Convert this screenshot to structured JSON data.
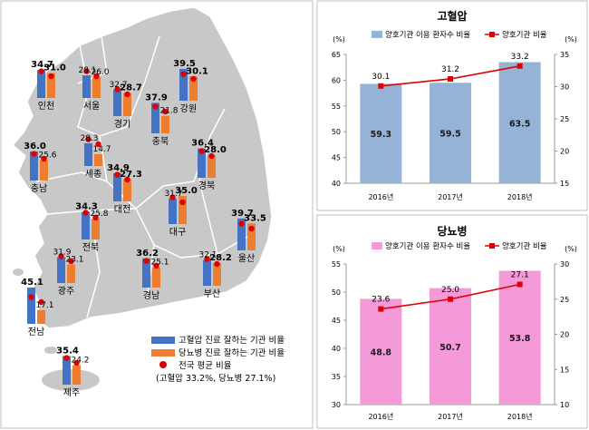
{
  "map": {
    "legend": {
      "hypertension_label": "고혈압 진료 잘하는 기관 비율",
      "diabetes_label": "당뇨병 진료 잘하는 기관 비율",
      "average_label": "전국 평균 비율",
      "average_note": "(고혈압 33.2%, 당뇨병 27.1%)"
    },
    "colors": {
      "hypertension": "#4472c4",
      "diabetes": "#ed7d31",
      "average_dot": "#e00000",
      "land": "#c8c8c8",
      "border": "#ffffff"
    },
    "national_average": {
      "hypertension": 33.2,
      "diabetes": 27.1
    },
    "regions": [
      {
        "name": "인천",
        "hypertension": 34.7,
        "diabetes": 31.0,
        "bold_h": true,
        "bold_d": true
      },
      {
        "name": "서울",
        "hypertension": 28.1,
        "diabetes": 26.0,
        "bold_h": false,
        "bold_d": false
      },
      {
        "name": "경기",
        "hypertension": 32.7,
        "diabetes": 28.7,
        "bold_h": false,
        "bold_d": true
      },
      {
        "name": "강원",
        "hypertension": 39.5,
        "diabetes": 30.1,
        "bold_h": true,
        "bold_d": true
      },
      {
        "name": "충북",
        "hypertension": 37.9,
        "diabetes": 21.8,
        "bold_h": true,
        "bold_d": false
      },
      {
        "name": "세종",
        "hypertension": 28.3,
        "diabetes": 14.7,
        "bold_h": false,
        "bold_d": false
      },
      {
        "name": "충남",
        "hypertension": 36.0,
        "diabetes": 25.6,
        "bold_h": true,
        "bold_d": false
      },
      {
        "name": "대전",
        "hypertension": 34.9,
        "diabetes": 27.3,
        "bold_h": true,
        "bold_d": true
      },
      {
        "name": "경북",
        "hypertension": 36.4,
        "diabetes": 28.0,
        "bold_h": true,
        "bold_d": true
      },
      {
        "name": "대구",
        "hypertension": 31.7,
        "diabetes": 35.0,
        "bold_h": false,
        "bold_d": true
      },
      {
        "name": "전북",
        "hypertension": 34.3,
        "diabetes": 25.8,
        "bold_h": true,
        "bold_d": false
      },
      {
        "name": "울산",
        "hypertension": 39.7,
        "diabetes": 33.5,
        "bold_h": true,
        "bold_d": true
      },
      {
        "name": "광주",
        "hypertension": 31.9,
        "diabetes": 23.1,
        "bold_h": false,
        "bold_d": false
      },
      {
        "name": "경남",
        "hypertension": 36.2,
        "diabetes": 25.1,
        "bold_h": true,
        "bold_d": false
      },
      {
        "name": "부산",
        "hypertension": 32.1,
        "diabetes": 28.2,
        "bold_h": false,
        "bold_d": true
      },
      {
        "name": "전남",
        "hypertension": 45.1,
        "diabetes": 17.1,
        "bold_h": true,
        "bold_d": false
      },
      {
        "name": "제주",
        "hypertension": 35.4,
        "diabetes": 24.2,
        "bold_h": true,
        "bold_d": false
      }
    ]
  },
  "chart_data": [
    {
      "type": "bar",
      "title": "고혈압",
      "categories": [
        "2016년",
        "2017년",
        "2018년"
      ],
      "left_unit": "(%)",
      "right_unit": "(%)",
      "ylim_left": [
        40,
        65
      ],
      "ylim_right": [
        15,
        35
      ],
      "yticks_left": [
        40,
        45,
        50,
        55,
        60,
        65
      ],
      "yticks_right": [
        15,
        20,
        25,
        30,
        35
      ],
      "grid": false,
      "legend_position": "top",
      "bar_color": "#95b3d7",
      "line_color": "#e00000",
      "series": [
        {
          "name": "양호기관 이용 환자수 비율",
          "kind": "bar",
          "axis": "left",
          "values": [
            59.3,
            59.5,
            63.5
          ]
        },
        {
          "name": "양호기관 비율",
          "kind": "line",
          "axis": "right",
          "values": [
            30.1,
            31.2,
            33.2
          ]
        }
      ]
    },
    {
      "type": "bar",
      "title": "당뇨병",
      "categories": [
        "2016년",
        "2017년",
        "2018년"
      ],
      "left_unit": "(%)",
      "right_unit": "(%)",
      "ylim_left": [
        30,
        55
      ],
      "ylim_right": [
        10,
        30
      ],
      "yticks_left": [
        30,
        35,
        40,
        45,
        50,
        55
      ],
      "yticks_right": [
        10,
        15,
        20,
        25,
        30
      ],
      "grid": false,
      "legend_position": "top",
      "bar_color": "#f49ad8",
      "line_color": "#e00000",
      "series": [
        {
          "name": "양호기관 이용 환자수 비율",
          "kind": "bar",
          "axis": "left",
          "values": [
            48.8,
            50.7,
            53.8
          ]
        },
        {
          "name": "양호기관 비율",
          "kind": "line",
          "axis": "right",
          "values": [
            23.6,
            25.0,
            27.1
          ]
        }
      ]
    }
  ]
}
